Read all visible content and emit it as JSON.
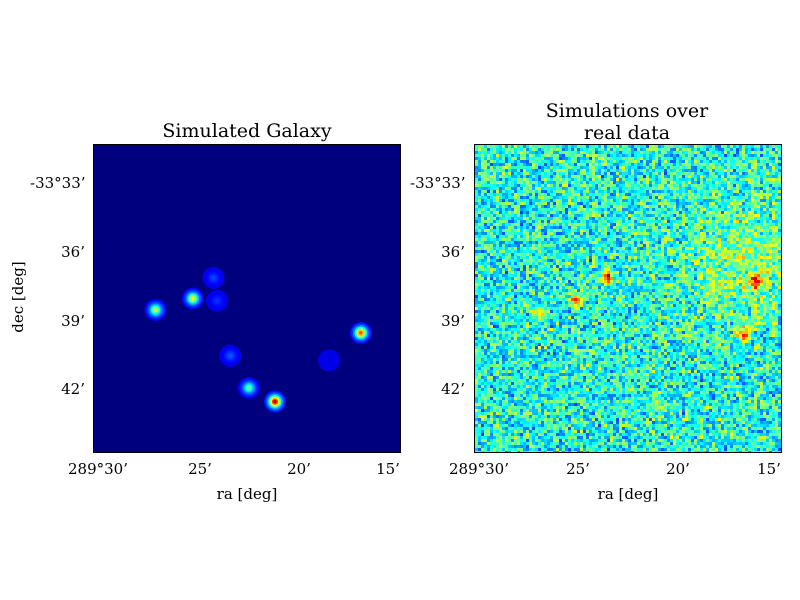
{
  "chart_data": [
    {
      "type": "heatmap",
      "title": "Simulated Galaxy",
      "xlabel": "ra [deg]",
      "ylabel": "dec [deg]",
      "x_tick_labels": [
        "289°30’",
        "25’",
        "20’",
        "15’"
      ],
      "y_tick_labels": [
        "-33°33’",
        "36’",
        "39’",
        "42’"
      ],
      "colormap": "jet",
      "background": "#00007f",
      "sources": [
        {
          "ra_arcmin": 27.3,
          "dec_arcmin": 38.5,
          "peak": 0.6
        },
        {
          "ra_arcmin": 25.3,
          "dec_arcmin": 38.0,
          "peak": 0.65
        },
        {
          "ra_arcmin": 24.2,
          "dec_arcmin": 37.1,
          "peak": 0.2
        },
        {
          "ra_arcmin": 24.0,
          "dec_arcmin": 38.1,
          "peak": 0.18
        },
        {
          "ra_arcmin": 23.3,
          "dec_arcmin": 40.5,
          "peak": 0.22
        },
        {
          "ra_arcmin": 22.3,
          "dec_arcmin": 41.9,
          "peak": 0.5
        },
        {
          "ra_arcmin": 20.9,
          "dec_arcmin": 42.5,
          "peak": 1.0
        },
        {
          "ra_arcmin": 18.0,
          "dec_arcmin": 40.7,
          "peak": 0.1
        },
        {
          "ra_arcmin": 16.3,
          "dec_arcmin": 39.5,
          "peak": 0.85
        }
      ]
    },
    {
      "type": "heatmap",
      "title": "Simulations over real data",
      "title_lines": [
        "Simulations over",
        "real data"
      ],
      "xlabel": "ra [deg]",
      "ylabel": "",
      "x_tick_labels": [
        "289°30’",
        "25’",
        "20’",
        "15’"
      ],
      "y_tick_labels": [
        "-33°33’",
        "36’",
        "39’",
        "42’"
      ],
      "colormap": "jet",
      "background_noise_level": 0.4,
      "sources": [
        {
          "ra_arcmin": 27.3,
          "dec_arcmin": 38.5,
          "peak": 0.25
        },
        {
          "ra_arcmin": 25.3,
          "dec_arcmin": 38.0,
          "peak": 0.3
        },
        {
          "ra_arcmin": 23.6,
          "dec_arcmin": 37.0,
          "peak": 0.45
        },
        {
          "ra_arcmin": 20.9,
          "dec_arcmin": 42.5,
          "peak": 0.25
        },
        {
          "ra_arcmin": 16.3,
          "dec_arcmin": 39.5,
          "peak": 0.4
        },
        {
          "ra_arcmin": 15.6,
          "dec_arcmin": 37.2,
          "peak": 0.45
        }
      ]
    }
  ]
}
